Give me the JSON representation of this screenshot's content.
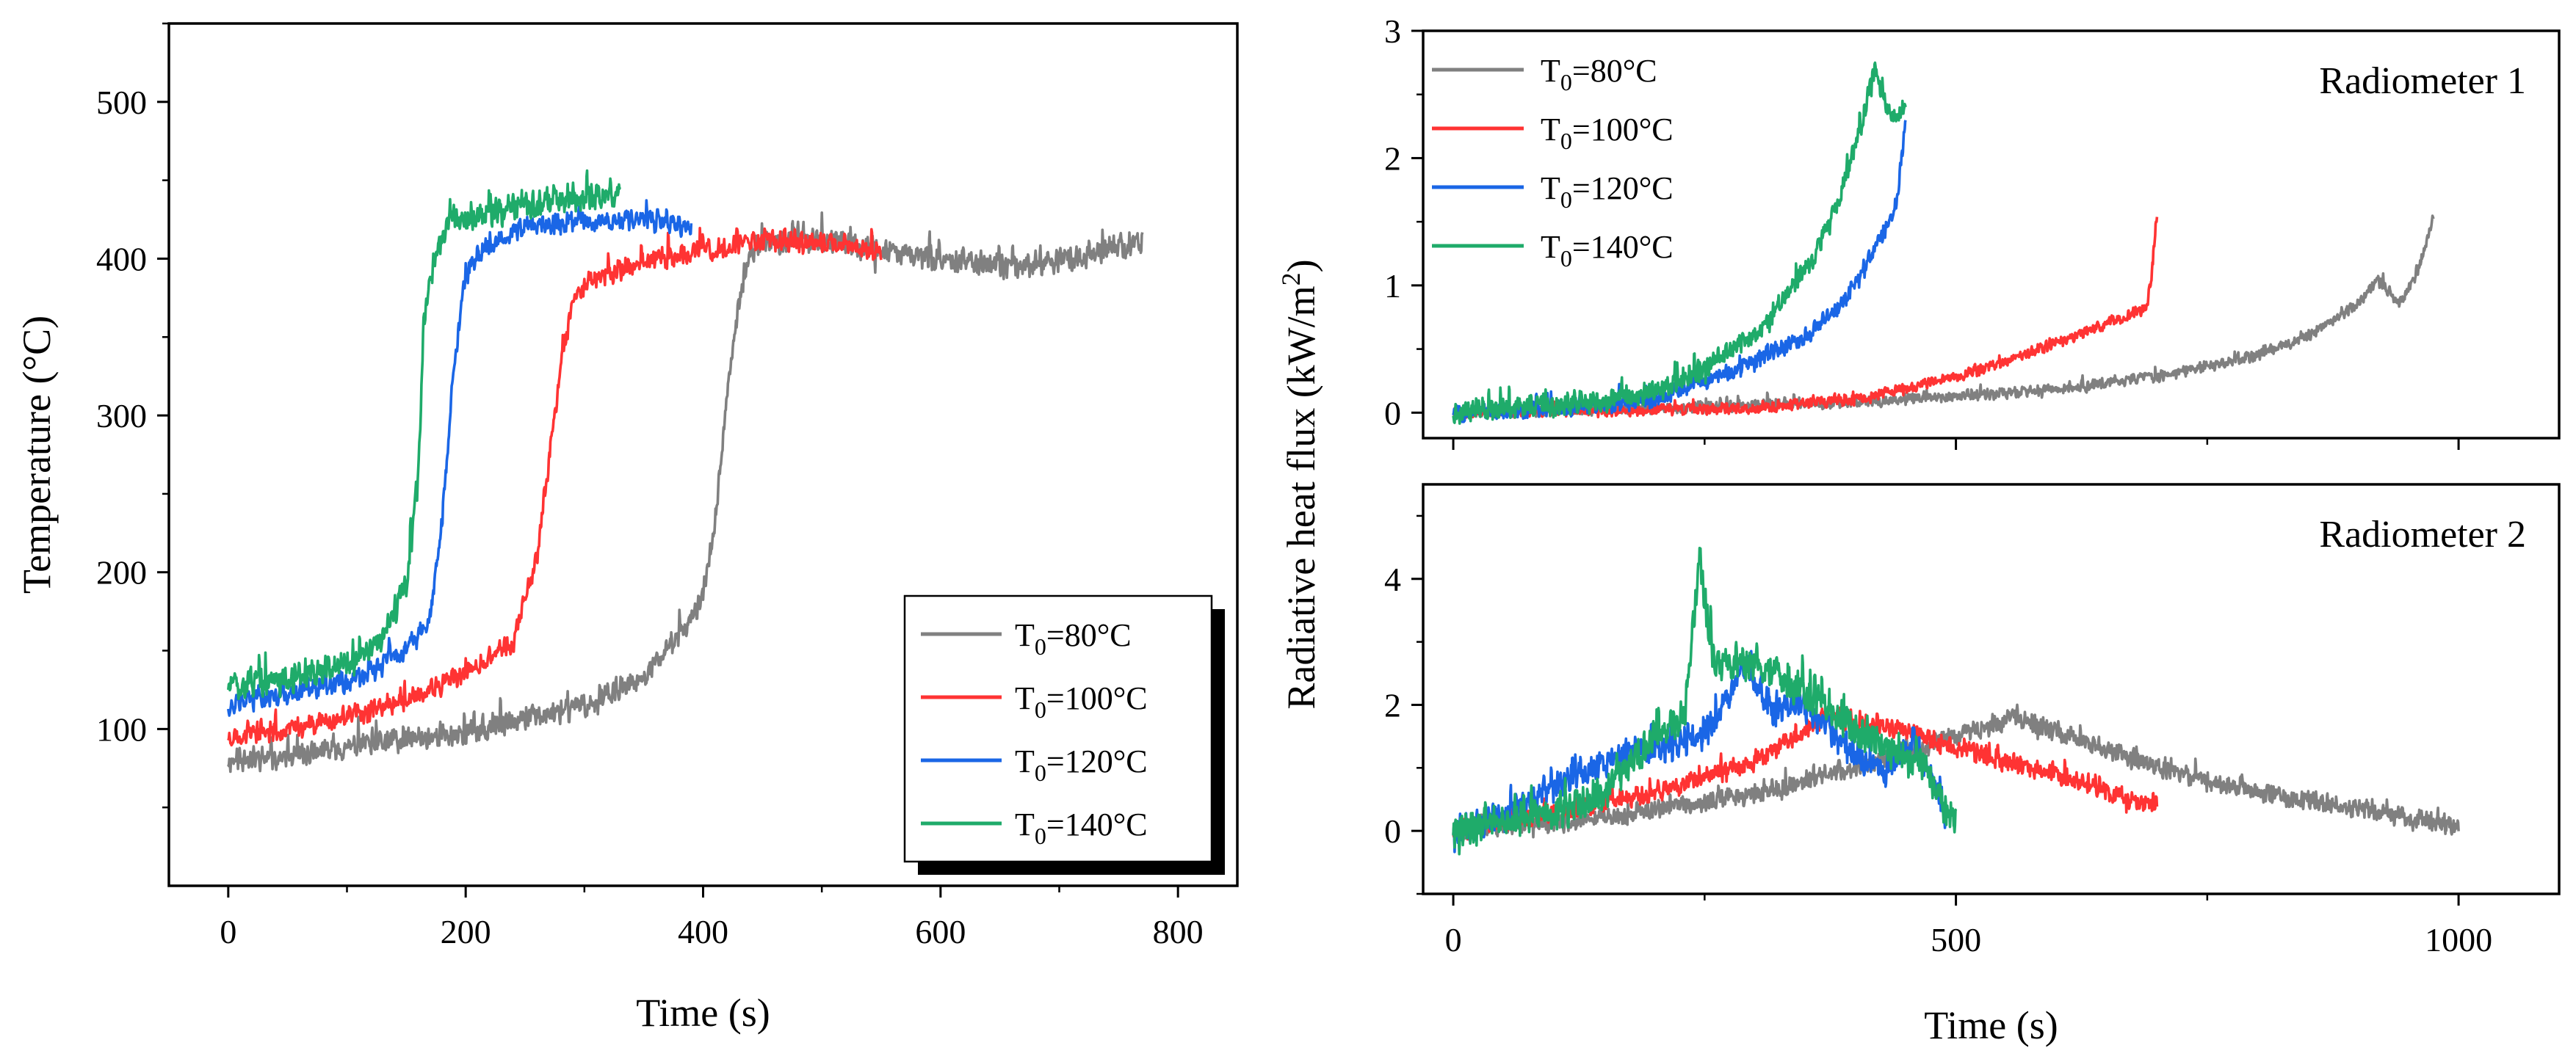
{
  "chart_data": [
    {
      "type": "line",
      "panel": "temperature",
      "title": "",
      "xlabel": "Time (s)",
      "ylabel": "Temperature (°C)",
      "xlim": [
        -50,
        850
      ],
      "ylim": [
        0,
        550
      ],
      "xticks": [
        0,
        200,
        400,
        600,
        800
      ],
      "yticks": [
        100,
        200,
        300,
        400,
        500
      ],
      "legend_position": "bottom-right",
      "series": [
        {
          "name": "T0=80°C",
          "sub": "0",
          "label_pre": "T",
          "label_post": "=80°C",
          "color": "#808080",
          "noise": 9,
          "seed": 11,
          "x": [
            0,
            50,
            100,
            200,
            300,
            350,
            380,
            400,
            410,
            420,
            430,
            440,
            450,
            500,
            550,
            600,
            650,
            700,
            740,
            770
          ],
          "y": [
            80,
            82,
            88,
            98,
            115,
            132,
            160,
            185,
            230,
            310,
            370,
            405,
            410,
            412,
            405,
            400,
            395,
            398,
            405,
            410
          ]
        },
        {
          "name": "T0=100°C",
          "sub": "0",
          "label_pre": "T",
          "label_post": "=100°C",
          "color": "#ff3333",
          "noise": 8,
          "seed": 23,
          "x": [
            0,
            50,
            100,
            150,
            200,
            240,
            260,
            270,
            280,
            290,
            300,
            320,
            350,
            400,
            450,
            500,
            550
          ],
          "y": [
            95,
            100,
            108,
            118,
            135,
            155,
            210,
            270,
            330,
            370,
            385,
            390,
            398,
            405,
            412,
            410,
            405
          ]
        },
        {
          "name": "T0=120°C",
          "sub": "0",
          "label_pre": "T",
          "label_post": "=120°C",
          "color": "#1a66e6",
          "noise": 8,
          "seed": 37,
          "x": [
            0,
            50,
            100,
            150,
            170,
            180,
            190,
            200,
            220,
            250,
            300,
            350,
            390
          ],
          "y": [
            115,
            122,
            130,
            150,
            170,
            230,
            330,
            390,
            410,
            420,
            425,
            425,
            420
          ]
        },
        {
          "name": "T0=140°C",
          "sub": "0",
          "label_pre": "T",
          "label_post": "=140°C",
          "color": "#1fab6a",
          "noise": 11,
          "seed": 51,
          "x": [
            0,
            50,
            100,
            130,
            150,
            160,
            165,
            175,
            190,
            220,
            260,
            300,
            330
          ],
          "y": [
            128,
            133,
            140,
            160,
            190,
            260,
            360,
            405,
            425,
            430,
            435,
            440,
            440
          ]
        }
      ]
    },
    {
      "type": "line",
      "panel": "radiometer-1",
      "annotation": "Radiometer 1",
      "xlim": [
        -30,
        1100
      ],
      "ylim": [
        -0.2,
        3
      ],
      "xticks": [
        0,
        500,
        1000
      ],
      "yticks": [
        0,
        1,
        2,
        3
      ],
      "legend_position": "top-left",
      "series": [
        {
          "name": "T0=80°C",
          "sub": "0",
          "label_pre": "T",
          "label_post": "=80°C",
          "color": "#808080",
          "noise": 0.05,
          "seed": 61,
          "x": [
            0,
            200,
            400,
            600,
            700,
            800,
            850,
            900,
            920,
            940,
            960,
            975
          ],
          "y": [
            0,
            0.03,
            0.08,
            0.18,
            0.28,
            0.45,
            0.6,
            0.85,
            1.05,
            0.85,
            1.1,
            1.55
          ]
        },
        {
          "name": "T0=100°C",
          "sub": "0",
          "label_pre": "T",
          "label_post": "=100°C",
          "color": "#ff3333",
          "noise": 0.05,
          "seed": 71,
          "x": [
            0,
            200,
            300,
            400,
            500,
            550,
            600,
            650,
            690,
            695,
            700
          ],
          "y": [
            0,
            0.02,
            0.04,
            0.1,
            0.28,
            0.4,
            0.55,
            0.7,
            0.82,
            1.1,
            1.55
          ]
        },
        {
          "name": "T0=120°C",
          "sub": "0",
          "label_pre": "T",
          "label_post": "=120°C",
          "color": "#1a66e6",
          "noise": 0.08,
          "seed": 83,
          "x": [
            0,
            100,
            200,
            250,
            300,
            350,
            380,
            400,
            420,
            440,
            450
          ],
          "y": [
            0,
            0.03,
            0.1,
            0.25,
            0.4,
            0.6,
            0.8,
            1.0,
            1.3,
            1.6,
            2.3
          ]
        },
        {
          "name": "T0=140°C",
          "sub": "0",
          "label_pre": "T",
          "label_post": "=140°C",
          "color": "#1fab6a",
          "noise": 0.1,
          "seed": 97,
          "x": [
            0,
            100,
            200,
            250,
            300,
            350,
            380,
            400,
            420,
            435,
            450
          ],
          "y": [
            0,
            0.05,
            0.15,
            0.35,
            0.6,
            1.1,
            1.6,
            2.1,
            2.7,
            2.3,
            2.4
          ]
        }
      ]
    },
    {
      "type": "line",
      "panel": "radiometer-2",
      "annotation": "Radiometer 2",
      "xlabel": "Time (s)",
      "ylabel_shared": "Radiative heat flux (kW/m²)",
      "ylabel_pre": "Radiative heat flux (kW/m",
      "ylabel_sup": "2",
      "ylabel_post": ")",
      "xlim": [
        -30,
        1100
      ],
      "ylim": [
        -1,
        5.5
      ],
      "xticks": [
        0,
        500,
        1000
      ],
      "yticks": [
        0,
        2,
        4
      ],
      "series": [
        {
          "name": "T0=80°C",
          "color": "#808080",
          "noise": 0.18,
          "seed": 101,
          "x": [
            0,
            150,
            300,
            400,
            500,
            560,
            650,
            700,
            800,
            900,
            950,
            1000
          ],
          "y": [
            0,
            0.2,
            0.6,
            1.0,
            1.5,
            1.8,
            1.3,
            1.0,
            0.6,
            0.35,
            0.2,
            0.05
          ]
        },
        {
          "name": "T0=100°C",
          "color": "#ff3333",
          "noise": 0.17,
          "seed": 113,
          "x": [
            0,
            100,
            200,
            300,
            370,
            450,
            500,
            550,
            600,
            650,
            700
          ],
          "y": [
            0,
            0.3,
            0.6,
            1.1,
            1.8,
            1.6,
            1.3,
            1.1,
            0.9,
            0.6,
            0.4
          ]
        },
        {
          "name": "T0=120°C",
          "color": "#1a66e6",
          "noise": 0.28,
          "seed": 127,
          "x": [
            0,
            50,
            100,
            150,
            200,
            250,
            290,
            320,
            350,
            400,
            430,
            460,
            480,
            490
          ],
          "y": [
            0,
            0.2,
            0.7,
            1.1,
            1.3,
            1.5,
            2.6,
            1.9,
            2.0,
            1.2,
            0.9,
            1.4,
            0.6,
            0.2
          ]
        },
        {
          "name": "T0=140°C",
          "color": "#1fab6a",
          "noise": 0.32,
          "seed": 139,
          "x": [
            0,
            100,
            150,
            200,
            230,
            245,
            260,
            300,
            350,
            400,
            440,
            470,
            490,
            500
          ],
          "y": [
            0,
            0.3,
            0.6,
            1.5,
            1.8,
            4.3,
            2.6,
            2.7,
            2.2,
            1.6,
            1.2,
            1.0,
            0.3,
            0.2
          ]
        }
      ]
    }
  ]
}
